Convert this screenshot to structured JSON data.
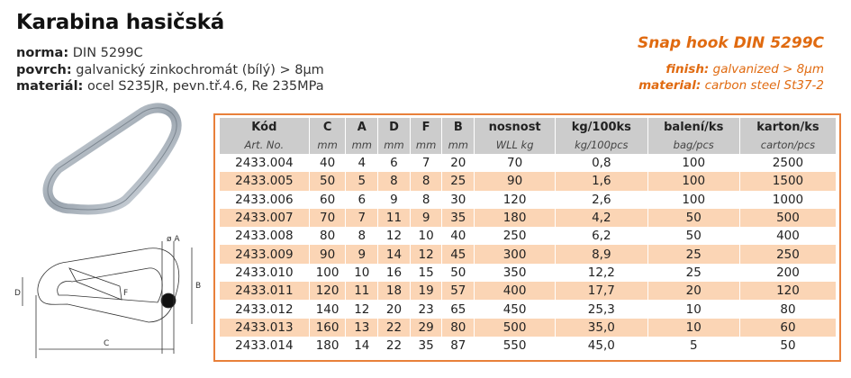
{
  "title": "Karabina hasičská",
  "specs_cz": [
    {
      "label": "norma:",
      "value": "DIN 5299C"
    },
    {
      "label": "povrch:",
      "value": "galvanický zinkochromát (bílý) > 8µm"
    },
    {
      "label": "materiál:",
      "value": "ocel S235JR, pevn.tř.4.6, Re 235MPa"
    }
  ],
  "specs_en": {
    "heading": "Snap hook DIN 5299C",
    "lines": [
      {
        "label": "finish:",
        "value": "galvanized > 8µm"
      },
      {
        "label": "material:",
        "value": "carbon steel St37-2"
      }
    ]
  },
  "diagram_labels": {
    "a": "ø A",
    "b": "B",
    "c": "C",
    "d": "D",
    "f": "F"
  },
  "table": {
    "headers": [
      "Kód",
      "C",
      "A",
      "D",
      "F",
      "B",
      "nosnost",
      "kg/100ks",
      "balení/ks",
      "karton/ks"
    ],
    "subheaders": [
      "Art. No.",
      "mm",
      "mm",
      "mm",
      "mm",
      "mm",
      "WLL kg",
      "kg/100pcs",
      "bag/pcs",
      "carton/pcs"
    ],
    "rows": [
      [
        "2433.004",
        "40",
        "4",
        "6",
        "7",
        "20",
        "70",
        "0,8",
        "100",
        "2500"
      ],
      [
        "2433.005",
        "50",
        "5",
        "8",
        "8",
        "25",
        "90",
        "1,6",
        "100",
        "1500"
      ],
      [
        "2433.006",
        "60",
        "6",
        "9",
        "8",
        "30",
        "120",
        "2,6",
        "100",
        "1000"
      ],
      [
        "2433.007",
        "70",
        "7",
        "11",
        "9",
        "35",
        "180",
        "4,2",
        "50",
        "500"
      ],
      [
        "2433.008",
        "80",
        "8",
        "12",
        "10",
        "40",
        "250",
        "6,2",
        "50",
        "400"
      ],
      [
        "2433.009",
        "90",
        "9",
        "14",
        "12",
        "45",
        "300",
        "8,9",
        "25",
        "250"
      ],
      [
        "2433.010",
        "100",
        "10",
        "16",
        "15",
        "50",
        "350",
        "12,2",
        "25",
        "200"
      ],
      [
        "2433.011",
        "120",
        "11",
        "18",
        "19",
        "57",
        "400",
        "17,7",
        "20",
        "120"
      ],
      [
        "2433.012",
        "140",
        "12",
        "20",
        "23",
        "65",
        "450",
        "25,3",
        "10",
        "80"
      ],
      [
        "2433.013",
        "160",
        "13",
        "22",
        "29",
        "80",
        "500",
        "35,0",
        "10",
        "60"
      ],
      [
        "2433.014",
        "180",
        "14",
        "22",
        "35",
        "87",
        "550",
        "45,0",
        "5",
        "50"
      ]
    ]
  },
  "colors": {
    "accent": "#e06a10",
    "border": "#e8803a",
    "row_alt": "#fbd5b5",
    "header": "#cccccc"
  }
}
